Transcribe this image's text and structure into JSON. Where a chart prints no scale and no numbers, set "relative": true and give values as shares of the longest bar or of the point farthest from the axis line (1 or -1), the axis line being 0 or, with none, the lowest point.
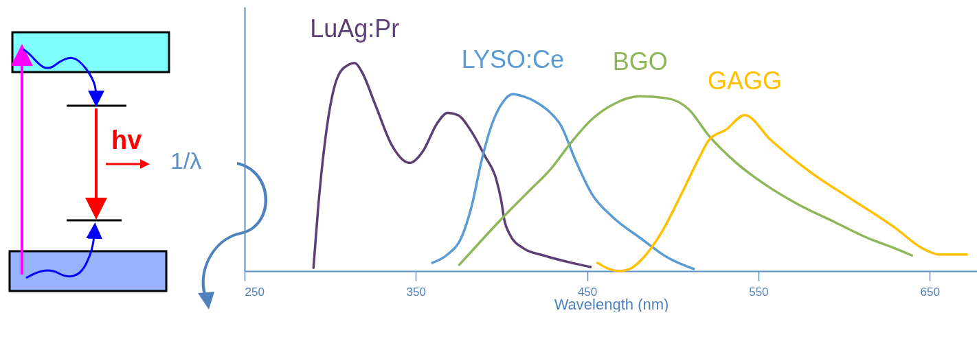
{
  "chart_data": {
    "type": "line",
    "relative": true,
    "xlabel": "Wavelength (nm)",
    "xlim": [
      250,
      678
    ],
    "xticks": [
      250,
      350,
      450,
      550,
      650
    ],
    "annotations": [
      "1/λ",
      "hv"
    ],
    "series": [
      {
        "name": "LuAg:Pr",
        "color": "#5b3f75",
        "x": [
          290.2,
          293,
          298.2,
          304.2,
          310.2,
          314.3,
          318.3,
          326.3,
          336.3,
          346.4,
          354.4,
          362.4,
          368.5,
          374.5,
          382.5,
          390.5,
          396.6,
          399.8,
          401.8,
          404.6,
          412.7,
          424.7,
          440.8,
          452
        ],
        "values": [
          0.016,
          0.31,
          0.7,
          0.93,
          0.99,
          1,
          0.96,
          0.8,
          0.6,
          0.52,
          0.58,
          0.71,
          0.76,
          0.75,
          0.67,
          0.55,
          0.45,
          0.34,
          0.24,
          0.18,
          0.11,
          0.075,
          0.04,
          0.02
        ]
      },
      {
        "name": "LYSO:Ce",
        "color": "#5b9bd5",
        "x": [
          359.6,
          368.5,
          376.5,
          382.5,
          388.6,
          394.6,
          400.6,
          406.6,
          412.7,
          420.7,
          428.7,
          434.7,
          442.8,
          452.8,
          464.9,
          480.9,
          497,
          512.2
        ],
        "values": [
          0.04,
          0.08,
          0.16,
          0.31,
          0.54,
          0.71,
          0.81,
          0.85,
          0.84,
          0.81,
          0.76,
          0.7,
          0.54,
          0.37,
          0.26,
          0.16,
          0.065,
          0.01
        ]
      },
      {
        "name": "BGO",
        "color": "#8fb65a",
        "x": [
          375.3,
          388.6,
          404.6,
          416.7,
          428.7,
          440.8,
          452.8,
          464.9,
          480.9,
          497,
          509,
          521.1,
          537.1,
          553.2,
          573.3,
          593.4,
          613.5,
          629.5,
          639.6
        ],
        "values": [
          0.03,
          0.15,
          0.29,
          0.39,
          0.49,
          0.62,
          0.73,
          0.8,
          0.84,
          0.83,
          0.78,
          0.65,
          0.52,
          0.42,
          0.32,
          0.24,
          0.16,
          0.11,
          0.075
        ]
      },
      {
        "name": "GAGG",
        "color": "#ffc000",
        "x": [
          456,
          462.9,
          468.9,
          474.9,
          482.9,
          493,
          505,
          515.1,
          521.1,
          531.1,
          542,
          557.2,
          581.3,
          605.4,
          629.5,
          645.6,
          655.6,
          671.7
        ],
        "values": [
          0.04,
          0.01,
          0,
          0.01,
          0.065,
          0.18,
          0.37,
          0.54,
          0.63,
          0.68,
          0.75,
          0.63,
          0.47,
          0.34,
          0.21,
          0.11,
          0.08,
          0.08
        ]
      }
    ]
  }
}
